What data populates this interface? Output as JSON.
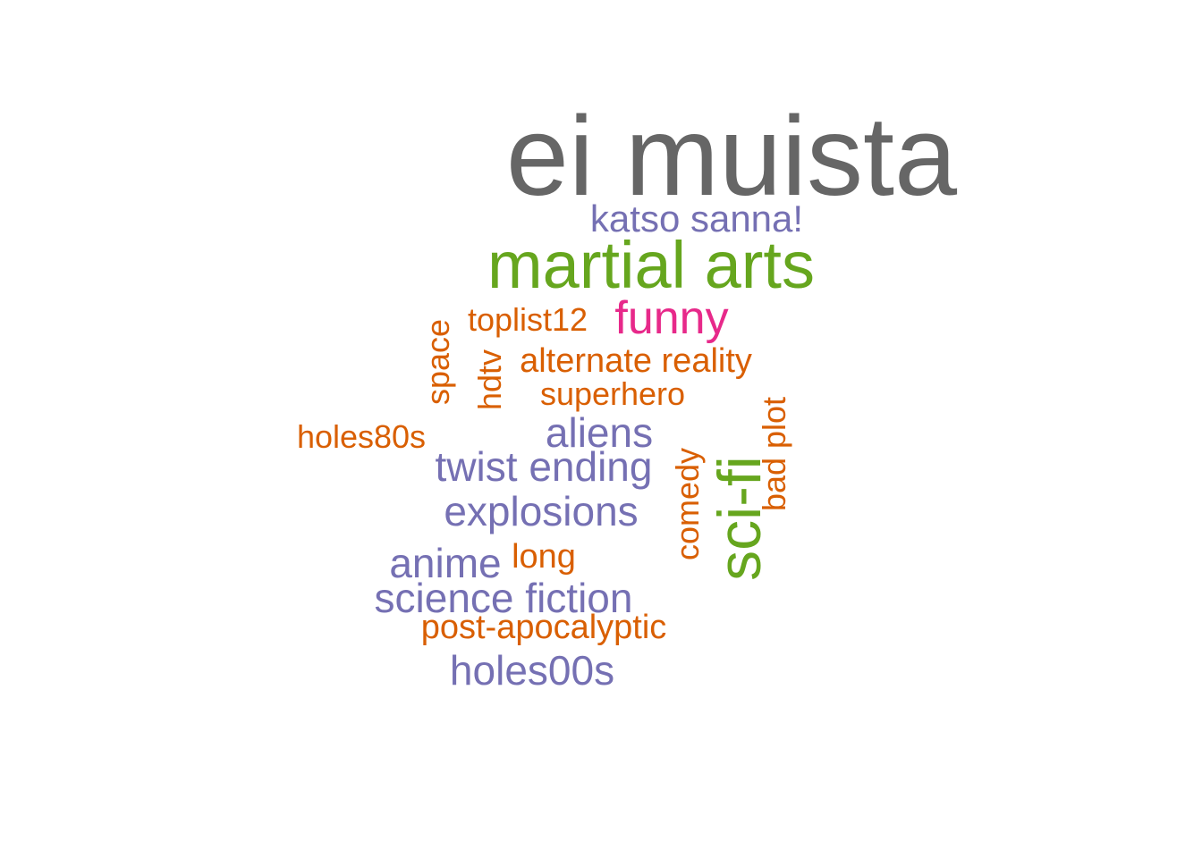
{
  "colors": {
    "gray": "#666666",
    "green": "#66a61e",
    "purple": "#7570b3",
    "orange": "#d95f02",
    "pink": "#e7298a"
  },
  "words": [
    {
      "id": "ei-muista",
      "text": "ei muista",
      "color": "gray",
      "orientation": "horizontal"
    },
    {
      "id": "katso-sanna",
      "text": "katso sanna!",
      "color": "purple",
      "orientation": "horizontal"
    },
    {
      "id": "martial-arts",
      "text": "martial arts",
      "color": "green",
      "orientation": "horizontal"
    },
    {
      "id": "toplist12",
      "text": "toplist12",
      "color": "orange",
      "orientation": "horizontal"
    },
    {
      "id": "funny",
      "text": "funny",
      "color": "pink",
      "orientation": "horizontal"
    },
    {
      "id": "space",
      "text": "space",
      "color": "orange",
      "orientation": "vertical"
    },
    {
      "id": "hdtv",
      "text": "hdtv",
      "color": "orange",
      "orientation": "vertical"
    },
    {
      "id": "alternate-reality",
      "text": "alternate reality",
      "color": "orange",
      "orientation": "horizontal"
    },
    {
      "id": "superhero",
      "text": "superhero",
      "color": "orange",
      "orientation": "horizontal"
    },
    {
      "id": "bad-plot",
      "text": "bad plot",
      "color": "orange",
      "orientation": "vertical"
    },
    {
      "id": "holes80s",
      "text": "holes80s",
      "color": "orange",
      "orientation": "horizontal"
    },
    {
      "id": "aliens",
      "text": "aliens",
      "color": "purple",
      "orientation": "horizontal"
    },
    {
      "id": "twist-ending",
      "text": "twist ending",
      "color": "purple",
      "orientation": "horizontal"
    },
    {
      "id": "comedy",
      "text": "comedy",
      "color": "orange",
      "orientation": "vertical"
    },
    {
      "id": "sci-fi",
      "text": "sci-fi",
      "color": "green",
      "orientation": "vertical"
    },
    {
      "id": "explosions",
      "text": "explosions",
      "color": "purple",
      "orientation": "horizontal"
    },
    {
      "id": "anime",
      "text": "anime",
      "color": "purple",
      "orientation": "horizontal"
    },
    {
      "id": "long",
      "text": "long",
      "color": "orange",
      "orientation": "horizontal"
    },
    {
      "id": "science-fiction",
      "text": "science fiction",
      "color": "purple",
      "orientation": "horizontal"
    },
    {
      "id": "post-apocalyptic",
      "text": "post-apocalyptic",
      "color": "orange",
      "orientation": "horizontal"
    },
    {
      "id": "holes00s",
      "text": "holes00s",
      "color": "purple",
      "orientation": "horizontal"
    }
  ]
}
